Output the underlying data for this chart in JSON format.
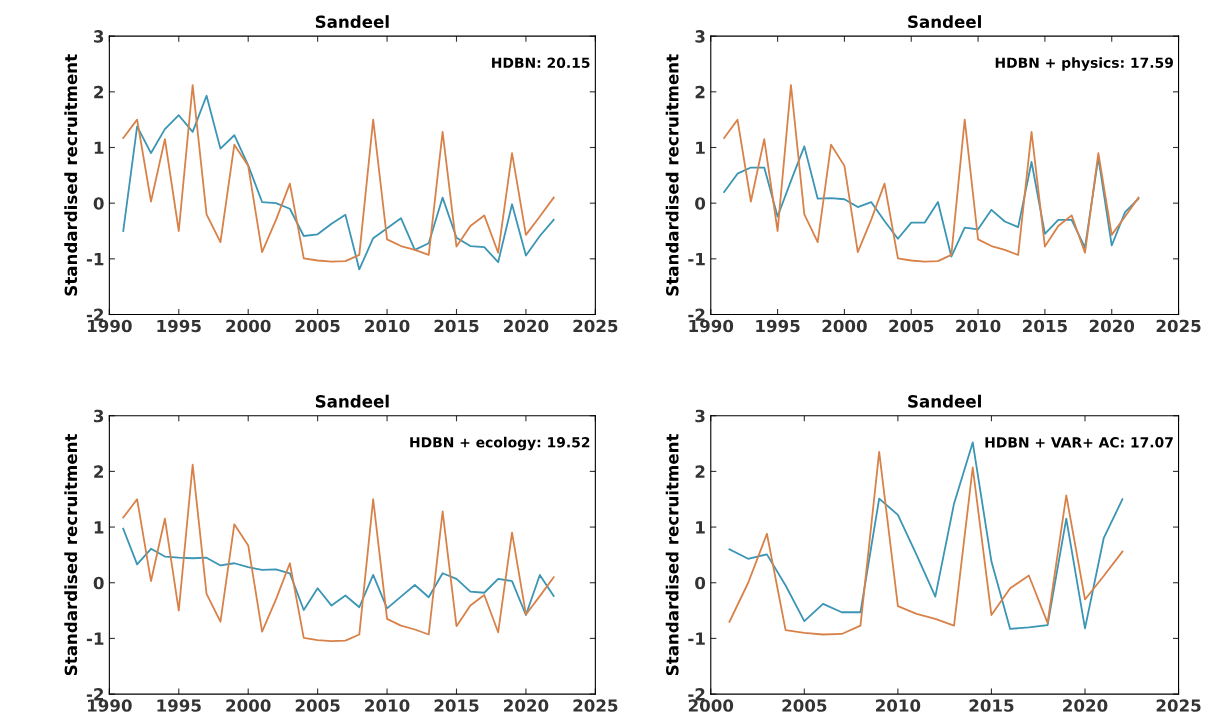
{
  "chart_data": [
    {
      "type": "line",
      "title": "Sandeel",
      "ylabel": "Standardised recruitment",
      "annotations": [
        "HDBN: 20.15"
      ],
      "x": [
        1991,
        1992,
        1993,
        1994,
        1995,
        1996,
        1997,
        1998,
        1999,
        2000,
        2001,
        2002,
        2003,
        2004,
        2005,
        2006,
        2007,
        2008,
        2009,
        2010,
        2011,
        2012,
        2013,
        2014,
        2015,
        2016,
        2017,
        2018,
        2019,
        2020,
        2021,
        2022
      ],
      "xlim": [
        1990,
        2025
      ],
      "xticks": [
        1990,
        1995,
        2000,
        2005,
        2010,
        2015,
        2020,
        2025
      ],
      "ylim": [
        -2,
        3
      ],
      "yticks": [
        -2,
        -1,
        0,
        1,
        2,
        3
      ],
      "series": [
        {
          "color": "#3b95b5",
          "values": [
            -0.5,
            1.38,
            0.9,
            1.33,
            1.58,
            1.28,
            1.93,
            0.98,
            1.22,
            0.68,
            0.02,
            0.0,
            -0.1,
            -0.59,
            -0.56,
            -0.37,
            -0.21,
            -1.19,
            -0.63,
            -0.45,
            -0.27,
            -0.84,
            -0.72,
            0.1,
            -0.62,
            -0.77,
            -0.79,
            -1.06,
            -0.02,
            -0.94,
            -0.59,
            -0.3
          ]
        },
        {
          "color": "#d8824a",
          "values": [
            1.17,
            1.5,
            0.03,
            1.15,
            -0.5,
            2.12,
            -0.2,
            -0.7,
            1.05,
            0.67,
            -0.88,
            -0.3,
            0.35,
            -0.99,
            -1.03,
            -1.05,
            -1.04,
            -0.93,
            1.5,
            -0.65,
            -0.77,
            -0.84,
            -0.93,
            1.28,
            -0.78,
            -0.41,
            -0.22,
            -0.89,
            0.9,
            -0.57,
            -0.24,
            0.1
          ]
        }
      ]
    },
    {
      "type": "line",
      "title": "Sandeel",
      "ylabel": "Standardised recruitment",
      "annotations": [
        "HDBN + physics: 17.59"
      ],
      "x": [
        1991,
        1992,
        1993,
        1994,
        1995,
        1996,
        1997,
        1998,
        1999,
        2000,
        2001,
        2002,
        2003,
        2004,
        2005,
        2006,
        2007,
        2008,
        2009,
        2010,
        2011,
        2012,
        2013,
        2014,
        2015,
        2016,
        2017,
        2018,
        2019,
        2020,
        2021,
        2022
      ],
      "xlim": [
        1990,
        2025
      ],
      "xticks": [
        1990,
        1995,
        2000,
        2005,
        2010,
        2015,
        2020,
        2025
      ],
      "ylim": [
        -2,
        3
      ],
      "yticks": [
        -2,
        -1,
        0,
        1,
        2,
        3
      ],
      "series": [
        {
          "color": "#3b95b5",
          "values": [
            0.2,
            0.53,
            0.64,
            0.64,
            -0.24,
            0.4,
            1.02,
            0.08,
            0.09,
            0.07,
            -0.07,
            0.02,
            -0.32,
            -0.64,
            -0.35,
            -0.35,
            0.02,
            -0.96,
            -0.44,
            -0.47,
            -0.12,
            -0.33,
            -0.43,
            0.74,
            -0.55,
            -0.3,
            -0.3,
            -0.8,
            0.82,
            -0.76,
            -0.16,
            0.08
          ]
        },
        {
          "color": "#d8824a",
          "values": [
            1.17,
            1.5,
            0.03,
            1.15,
            -0.5,
            2.12,
            -0.2,
            -0.7,
            1.05,
            0.67,
            -0.88,
            -0.3,
            0.35,
            -0.99,
            -1.03,
            -1.05,
            -1.04,
            -0.93,
            1.5,
            -0.65,
            -0.77,
            -0.84,
            -0.93,
            1.28,
            -0.78,
            -0.41,
            -0.22,
            -0.89,
            0.9,
            -0.57,
            -0.24,
            0.1
          ]
        }
      ]
    },
    {
      "type": "line",
      "title": "Sandeel",
      "ylabel": "Standardised recruitment",
      "annotations": [
        "HDBN + ecology: 19.52"
      ],
      "x": [
        1991,
        1992,
        1993,
        1994,
        1995,
        1996,
        1997,
        1998,
        1999,
        2000,
        2001,
        2002,
        2003,
        2004,
        2005,
        2006,
        2007,
        2008,
        2009,
        2010,
        2011,
        2012,
        2013,
        2014,
        2015,
        2016,
        2017,
        2018,
        2019,
        2020,
        2021,
        2022
      ],
      "xlim": [
        1990,
        2025
      ],
      "xticks": [
        1990,
        1995,
        2000,
        2005,
        2010,
        2015,
        2020,
        2025
      ],
      "ylim": [
        -2,
        3
      ],
      "yticks": [
        -2,
        -1,
        0,
        1,
        2,
        3
      ],
      "series": [
        {
          "color": "#3b95b5",
          "values": [
            0.97,
            0.33,
            0.61,
            0.47,
            0.45,
            0.44,
            0.45,
            0.31,
            0.35,
            0.28,
            0.23,
            0.24,
            0.17,
            -0.49,
            -0.1,
            -0.41,
            -0.23,
            -0.44,
            0.14,
            -0.46,
            -0.25,
            -0.04,
            -0.26,
            0.17,
            0.07,
            -0.16,
            -0.18,
            0.07,
            0.03,
            -0.58,
            0.14,
            -0.24
          ]
        },
        {
          "color": "#d8824a",
          "values": [
            1.17,
            1.5,
            0.03,
            1.15,
            -0.5,
            2.12,
            -0.2,
            -0.7,
            1.05,
            0.67,
            -0.88,
            -0.3,
            0.35,
            -0.99,
            -1.03,
            -1.05,
            -1.04,
            -0.93,
            1.5,
            -0.65,
            -0.77,
            -0.84,
            -0.93,
            1.28,
            -0.78,
            -0.41,
            -0.22,
            -0.89,
            0.9,
            -0.57,
            -0.24,
            0.1
          ]
        }
      ]
    },
    {
      "type": "line",
      "title": "Sandeel",
      "ylabel": "Standardised recruitment",
      "annotations": [
        "HDBN + VAR+ AC: 17.07"
      ],
      "x": [
        2001,
        2002,
        2003,
        2004,
        2005,
        2006,
        2007,
        2008,
        2009,
        2010,
        2011,
        2012,
        2013,
        2014,
        2015,
        2016,
        2017,
        2018,
        2019,
        2020,
        2021,
        2022
      ],
      "xlim": [
        2000,
        2025
      ],
      "xticks": [
        2000,
        2005,
        2010,
        2015,
        2020,
        2025
      ],
      "ylim": [
        -2,
        3
      ],
      "yticks": [
        -2,
        -1,
        0,
        1,
        2,
        3
      ],
      "series": [
        {
          "color": "#3b95b5",
          "values": [
            0.6,
            0.43,
            0.51,
            -0.05,
            -0.69,
            -0.38,
            -0.53,
            -0.53,
            1.51,
            1.22,
            0.5,
            -0.25,
            1.42,
            2.52,
            0.38,
            -0.83,
            -0.8,
            -0.76,
            1.15,
            -0.82,
            0.8,
            1.5
          ]
        },
        {
          "color": "#d8824a",
          "values": [
            -0.7,
            0.0,
            0.88,
            -0.85,
            -0.9,
            -0.93,
            -0.92,
            -0.77,
            2.35,
            -0.42,
            -0.56,
            -0.65,
            -0.77,
            2.07,
            -0.58,
            -0.1,
            0.13,
            -0.72,
            1.57,
            -0.3,
            0.12,
            0.56
          ]
        }
      ]
    }
  ]
}
